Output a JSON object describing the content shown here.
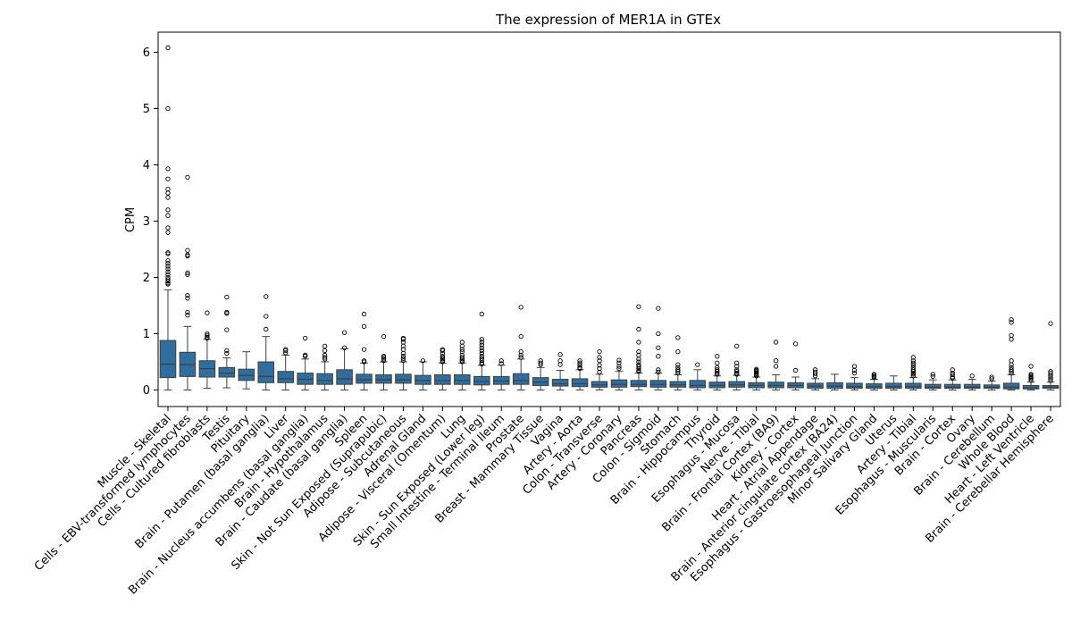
{
  "chart_data": {
    "type": "boxplot",
    "title": "The expression of MER1A in GTEx",
    "xlabel": "",
    "ylabel": "CPM",
    "ylim": [
      -0.3,
      6.35
    ],
    "yticks": [
      0,
      1,
      2,
      3,
      4,
      5,
      6
    ],
    "grid": false,
    "box_color": "#2f6e9e",
    "categories": [
      "Muscle - Skeletal",
      "Cells - EBV-transformed lymphocytes",
      "Cells - Cultured fibroblasts",
      "Testis",
      "Pituitary",
      "Brain - Putamen (basal ganglia)",
      "Liver",
      "Brain - Nucleus accumbens (basal ganglia)",
      "Brain - Hypothalamus",
      "Brain - Caudate (basal ganglia)",
      "Spleen",
      "Skin - Not Sun Exposed (Suprapubic)",
      "Adipose - Subcutaneous",
      "Adrenal Gland",
      "Adipose - Visceral (Omentum)",
      "Lung",
      "Skin - Sun Exposed (Lower leg)",
      "Small Intestine - Terminal Ileum",
      "Prostate",
      "Breast - Mammary Tissue",
      "Vagina",
      "Artery - Aorta",
      "Colon - Transverse",
      "Artery - Coronary",
      "Pancreas",
      "Colon - Sigmoid",
      "Stomach",
      "Brain - Hippocampus",
      "Thyroid",
      "Esophagus - Mucosa",
      "Nerve - Tibial",
      "Brain - Frontal Cortex (BA9)",
      "Kidney - Cortex",
      "Heart - Atrial Appendage",
      "Brain - Anterior cingulate cortex (BA24)",
      "Esophagus - Gastroesophageal Junction",
      "Minor Salivary Gland",
      "Uterus",
      "Artery - Tibial",
      "Esophagus - Muscularis",
      "Brain - Cortex",
      "Ovary",
      "Brain - Cerebellum",
      "Whole Blood",
      "Heart - Left Ventricle",
      "Brain - Cerebellar Hemisphere"
    ],
    "boxes": [
      {
        "whislo": 0.0,
        "q1": 0.22,
        "med": 0.46,
        "q3": 0.88,
        "whishi": 1.78,
        "fliers": [
          1.88,
          1.9,
          1.93,
          1.96,
          2.0,
          2.05,
          2.1,
          2.15,
          2.2,
          2.25,
          2.3,
          2.42,
          2.44,
          2.8,
          2.88,
          3.1,
          3.2,
          3.42,
          3.5,
          3.57,
          3.75,
          3.93,
          5.0,
          6.08
        ]
      },
      {
        "whislo": 0.0,
        "q1": 0.24,
        "med": 0.45,
        "q3": 0.67,
        "whishi": 1.13,
        "fliers": [
          1.33,
          1.38,
          1.63,
          1.68,
          2.05,
          2.08,
          2.38,
          2.4,
          2.48,
          3.78
        ]
      },
      {
        "whislo": 0.03,
        "q1": 0.23,
        "med": 0.38,
        "q3": 0.52,
        "whishi": 0.9,
        "fliers": [
          0.92,
          0.94,
          0.97,
          1.0,
          1.37
        ]
      },
      {
        "whislo": 0.04,
        "q1": 0.23,
        "med": 0.3,
        "q3": 0.4,
        "whishi": 0.57,
        "fliers": [
          0.65,
          0.7,
          1.07,
          1.36,
          1.38,
          1.65
        ]
      },
      {
        "whislo": 0.02,
        "q1": 0.17,
        "med": 0.26,
        "q3": 0.37,
        "whishi": 0.68,
        "fliers": []
      },
      {
        "whislo": 0.0,
        "q1": 0.13,
        "med": 0.24,
        "q3": 0.5,
        "whishi": 0.95,
        "fliers": [
          1.08,
          1.31,
          1.66
        ]
      },
      {
        "whislo": 0.0,
        "q1": 0.13,
        "med": 0.2,
        "q3": 0.33,
        "whishi": 0.62,
        "fliers": [
          0.66,
          0.7,
          0.72
        ]
      },
      {
        "whislo": 0.0,
        "q1": 0.1,
        "med": 0.19,
        "q3": 0.3,
        "whishi": 0.55,
        "fliers": [
          0.6,
          0.62,
          0.92
        ]
      },
      {
        "whislo": 0.0,
        "q1": 0.1,
        "med": 0.17,
        "q3": 0.29,
        "whishi": 0.5,
        "fliers": [
          0.55,
          0.58,
          0.62,
          0.7,
          0.78
        ]
      },
      {
        "whislo": 0.0,
        "q1": 0.1,
        "med": 0.2,
        "q3": 0.36,
        "whishi": 0.73,
        "fliers": [
          0.75,
          1.02
        ]
      },
      {
        "whislo": 0.0,
        "q1": 0.12,
        "med": 0.18,
        "q3": 0.28,
        "whishi": 0.48,
        "fliers": [
          0.5,
          0.52,
          0.72,
          1.13,
          1.35
        ]
      },
      {
        "whislo": 0.0,
        "q1": 0.12,
        "med": 0.18,
        "q3": 0.27,
        "whishi": 0.5,
        "fliers": [
          0.52,
          0.55,
          0.58,
          0.6,
          0.95
        ]
      },
      {
        "whislo": 0.0,
        "q1": 0.12,
        "med": 0.18,
        "q3": 0.28,
        "whishi": 0.5,
        "fliers": [
          0.52,
          0.56,
          0.6,
          0.65,
          0.72,
          0.78,
          0.85,
          0.9,
          0.92
        ]
      },
      {
        "whislo": 0.0,
        "q1": 0.1,
        "med": 0.17,
        "q3": 0.26,
        "whishi": 0.5,
        "fliers": [
          0.52
        ]
      },
      {
        "whislo": 0.0,
        "q1": 0.1,
        "med": 0.17,
        "q3": 0.27,
        "whishi": 0.48,
        "fliers": [
          0.5,
          0.52,
          0.55,
          0.58,
          0.6,
          0.65,
          0.7,
          0.72
        ]
      },
      {
        "whislo": 0.0,
        "q1": 0.1,
        "med": 0.17,
        "q3": 0.27,
        "whishi": 0.48,
        "fliers": [
          0.5,
          0.52,
          0.55,
          0.58,
          0.62,
          0.68,
          0.72,
          0.78,
          0.85
        ]
      },
      {
        "whislo": 0.0,
        "q1": 0.09,
        "med": 0.15,
        "q3": 0.24,
        "whishi": 0.44,
        "fliers": [
          0.46,
          0.48,
          0.52,
          0.56,
          0.6,
          0.65,
          0.7,
          0.75,
          0.8,
          0.85,
          0.9,
          1.35
        ]
      },
      {
        "whislo": 0.0,
        "q1": 0.1,
        "med": 0.16,
        "q3": 0.24,
        "whishi": 0.44,
        "fliers": [
          0.47,
          0.52
        ]
      },
      {
        "whislo": 0.0,
        "q1": 0.1,
        "med": 0.17,
        "q3": 0.29,
        "whishi": 0.55,
        "fliers": [
          0.58,
          0.62,
          0.68,
          0.95,
          1.47
        ]
      },
      {
        "whislo": 0.0,
        "q1": 0.08,
        "med": 0.14,
        "q3": 0.22,
        "whishi": 0.4,
        "fliers": [
          0.45,
          0.48,
          0.52
        ]
      },
      {
        "whislo": 0.0,
        "q1": 0.07,
        "med": 0.11,
        "q3": 0.19,
        "whishi": 0.35,
        "fliers": [
          0.45,
          0.52,
          0.63
        ]
      },
      {
        "whislo": 0.0,
        "q1": 0.06,
        "med": 0.11,
        "q3": 0.2,
        "whishi": 0.36,
        "fliers": [
          0.38,
          0.4,
          0.44,
          0.48,
          0.52
        ]
      },
      {
        "whislo": 0.0,
        "q1": 0.05,
        "med": 0.09,
        "q3": 0.15,
        "whishi": 0.28,
        "fliers": [
          0.32,
          0.38,
          0.44,
          0.52,
          0.58,
          0.68
        ]
      },
      {
        "whislo": 0.0,
        "q1": 0.05,
        "med": 0.1,
        "q3": 0.18,
        "whishi": 0.33,
        "fliers": [
          0.38,
          0.42,
          0.48,
          0.53
        ]
      },
      {
        "whislo": 0.0,
        "q1": 0.06,
        "med": 0.1,
        "q3": 0.17,
        "whishi": 0.3,
        "fliers": [
          0.33,
          0.35,
          0.38,
          0.42,
          0.45,
          0.5,
          0.55,
          0.62,
          0.68,
          0.85,
          1.08,
          1.48
        ]
      },
      {
        "whislo": 0.0,
        "q1": 0.05,
        "med": 0.1,
        "q3": 0.17,
        "whishi": 0.3,
        "fliers": [
          0.32,
          0.36,
          0.6,
          0.75,
          1.0,
          1.45
        ]
      },
      {
        "whislo": 0.0,
        "q1": 0.05,
        "med": 0.09,
        "q3": 0.15,
        "whishi": 0.27,
        "fliers": [
          0.3,
          0.33,
          0.36,
          0.4,
          0.45,
          0.68,
          0.93
        ]
      },
      {
        "whislo": 0.0,
        "q1": 0.04,
        "med": 0.08,
        "q3": 0.17,
        "whishi": 0.36,
        "fliers": [
          0.45
        ]
      },
      {
        "whislo": 0.0,
        "q1": 0.04,
        "med": 0.08,
        "q3": 0.14,
        "whishi": 0.25,
        "fliers": [
          0.28,
          0.3,
          0.33,
          0.36,
          0.4,
          0.48,
          0.6
        ]
      },
      {
        "whislo": 0.0,
        "q1": 0.05,
        "med": 0.09,
        "q3": 0.15,
        "whishi": 0.26,
        "fliers": [
          0.28,
          0.3,
          0.33,
          0.36,
          0.42,
          0.48,
          0.78
        ]
      },
      {
        "whislo": 0.0,
        "q1": 0.04,
        "med": 0.08,
        "q3": 0.13,
        "whishi": 0.23,
        "fliers": [
          0.25,
          0.27,
          0.29,
          0.31,
          0.33,
          0.35,
          0.37
        ]
      },
      {
        "whislo": 0.0,
        "q1": 0.04,
        "med": 0.08,
        "q3": 0.14,
        "whishi": 0.27,
        "fliers": [
          0.42,
          0.52,
          0.85
        ]
      },
      {
        "whislo": 0.0,
        "q1": 0.04,
        "med": 0.08,
        "q3": 0.13,
        "whishi": 0.23,
        "fliers": [
          0.35,
          0.82
        ]
      },
      {
        "whislo": 0.0,
        "q1": 0.03,
        "med": 0.07,
        "q3": 0.12,
        "whishi": 0.2,
        "fliers": [
          0.25,
          0.29,
          0.32,
          0.36
        ]
      },
      {
        "whislo": 0.0,
        "q1": 0.03,
        "med": 0.07,
        "q3": 0.13,
        "whishi": 0.28,
        "fliers": []
      },
      {
        "whislo": 0.0,
        "q1": 0.03,
        "med": 0.06,
        "q3": 0.12,
        "whishi": 0.22,
        "fliers": [
          0.3,
          0.35,
          0.42
        ]
      },
      {
        "whislo": 0.0,
        "q1": 0.03,
        "med": 0.06,
        "q3": 0.11,
        "whishi": 0.19,
        "fliers": [
          0.22,
          0.24,
          0.26,
          0.28
        ]
      },
      {
        "whislo": 0.0,
        "q1": 0.03,
        "med": 0.06,
        "q3": 0.12,
        "whishi": 0.25,
        "fliers": []
      },
      {
        "whislo": 0.0,
        "q1": 0.03,
        "med": 0.06,
        "q3": 0.12,
        "whishi": 0.22,
        "fliers": [
          0.25,
          0.28,
          0.3,
          0.33,
          0.36,
          0.4,
          0.44,
          0.48,
          0.52,
          0.58
        ]
      },
      {
        "whislo": 0.0,
        "q1": 0.03,
        "med": 0.05,
        "q3": 0.1,
        "whishi": 0.18,
        "fliers": [
          0.24,
          0.28
        ]
      },
      {
        "whislo": 0.0,
        "q1": 0.03,
        "med": 0.05,
        "q3": 0.1,
        "whishi": 0.18,
        "fliers": [
          0.21,
          0.23,
          0.27,
          0.3,
          0.36
        ]
      },
      {
        "whislo": 0.0,
        "q1": 0.03,
        "med": 0.05,
        "q3": 0.1,
        "whishi": 0.19,
        "fliers": [
          0.25
        ]
      },
      {
        "whislo": 0.0,
        "q1": 0.03,
        "med": 0.05,
        "q3": 0.09,
        "whishi": 0.16,
        "fliers": [
          0.2,
          0.23
        ]
      },
      {
        "whislo": 0.0,
        "q1": 0.02,
        "med": 0.05,
        "q3": 0.12,
        "whishi": 0.27,
        "fliers": [
          0.3,
          0.33,
          0.36,
          0.4,
          0.45,
          0.52,
          0.9,
          0.97,
          1.2,
          1.25
        ]
      },
      {
        "whislo": 0.0,
        "q1": 0.02,
        "med": 0.04,
        "q3": 0.08,
        "whishi": 0.14,
        "fliers": [
          0.17,
          0.2,
          0.22,
          0.24,
          0.26,
          0.28,
          0.42
        ]
      },
      {
        "whislo": 0.0,
        "q1": 0.03,
        "med": 0.05,
        "q3": 0.08,
        "whishi": 0.14,
        "fliers": [
          0.17,
          0.2,
          0.23,
          0.26,
          0.3,
          0.33,
          1.18
        ]
      }
    ]
  }
}
